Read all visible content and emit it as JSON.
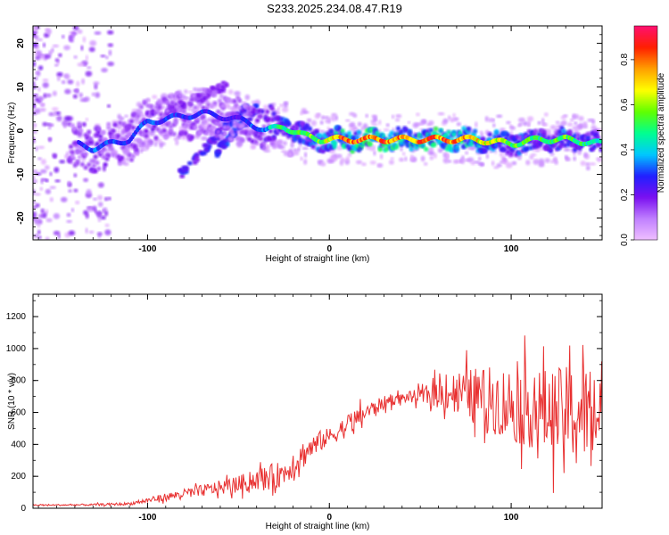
{
  "title": "S233.2025.234.08.47.R19",
  "chart_data": [
    {
      "type": "heatmap",
      "xlabel": "Height of straight line (km)",
      "ylabel": "Frequency (Hz)",
      "xlim": [
        -163,
        150
      ],
      "ylim": [
        -25,
        24
      ],
      "x_ticks": [
        -100,
        0,
        100
      ],
      "y_ticks": [
        -20,
        -10,
        0,
        10,
        20
      ],
      "colorbar": {
        "label": "Normalized spectral amplitude",
        "range": [
          0.0,
          0.95
        ],
        "ticks": [
          0.0,
          0.2,
          0.4,
          0.6,
          0.8
        ],
        "tick_labels": [
          "0.0",
          "0.2",
          "0.4",
          "0.6",
          "0.8"
        ],
        "colormap": [
          "#f0c0ff",
          "#c080ff",
          "#7a10f0",
          "#2020ff",
          "#00c8ff",
          "#00ff90",
          "#60ff00",
          "#ffff00",
          "#ffa000",
          "#ff2000",
          "#ff1070"
        ]
      },
      "ridge_x": [
        -163,
        -140,
        -130,
        -110,
        -100,
        -85,
        -70,
        -55,
        -45,
        -35,
        -25,
        -15,
        -5,
        0,
        10,
        20,
        40,
        60,
        80,
        100,
        115,
        130,
        150
      ],
      "ridge_freq": [
        0,
        -3,
        -4,
        -2,
        2,
        3,
        4,
        3,
        2,
        0,
        1,
        -1,
        -2,
        -2,
        -2,
        -2,
        -2,
        -2,
        -2,
        -3,
        -2,
        -2,
        -3
      ],
      "ridge_amplitude": [
        0.1,
        0.3,
        0.35,
        0.3,
        0.35,
        0.3,
        0.3,
        0.25,
        0.3,
        0.4,
        0.55,
        0.6,
        0.65,
        0.7,
        0.9,
        0.9,
        0.85,
        0.9,
        0.8,
        0.6,
        0.55,
        0.6,
        0.45
      ]
    },
    {
      "type": "line",
      "xlabel": "Height of straight line (km)",
      "ylabel": "SNR (10 * v/v)",
      "xlim": [
        -163,
        150
      ],
      "ylim": [
        0,
        1340
      ],
      "x_ticks": [
        -100,
        0,
        100
      ],
      "y_ticks": [
        0,
        200,
        400,
        600,
        800,
        1000,
        1200
      ],
      "series": [
        {
          "name": "SNR",
          "color": "#e83030",
          "x": [
            -163,
            -150,
            -130,
            -110,
            -90,
            -70,
            -50,
            -40,
            -30,
            -25,
            -20,
            -15,
            -10,
            -5,
            0,
            5,
            10,
            15,
            20,
            25,
            30,
            35,
            40,
            45,
            50,
            55,
            60,
            70,
            80,
            90,
            100,
            110,
            120,
            130,
            140,
            150
          ],
          "y_mean": [
            20,
            20,
            22,
            28,
            70,
            110,
            150,
            180,
            200,
            220,
            280,
            330,
            380,
            420,
            450,
            480,
            520,
            560,
            600,
            630,
            660,
            680,
            690,
            700,
            700,
            710,
            720,
            730,
            700,
            680,
            650,
            630,
            600,
            600,
            600,
            610
          ],
          "y_spread": [
            8,
            8,
            10,
            15,
            40,
            60,
            90,
            110,
            140,
            120,
            150,
            150,
            120,
            110,
            90,
            100,
            120,
            110,
            90,
            80,
            70,
            60,
            50,
            60,
            80,
            120,
            160,
            220,
            300,
            350,
            400,
            420,
            450,
            480,
            520,
            550
          ]
        }
      ]
    }
  ]
}
